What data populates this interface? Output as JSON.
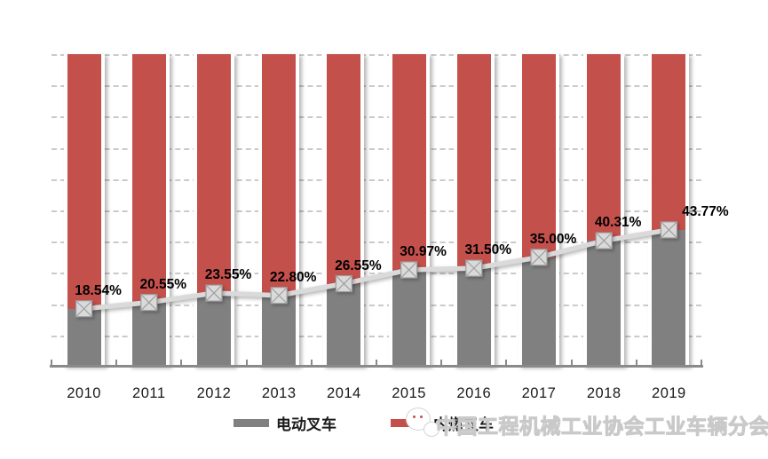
{
  "chart_data": {
    "type": "bar",
    "subtype": "100-percent-stacked-columns-with-line-overlay",
    "title": "",
    "categories": [
      "2010",
      "2011",
      "2012",
      "2013",
      "2014",
      "2015",
      "2016",
      "2017",
      "2018",
      "2019"
    ],
    "series": [
      {
        "name": "电动叉车",
        "role": "bar-bottom",
        "color": "#808080",
        "values": [
          18.54,
          20.55,
          23.55,
          22.8,
          26.55,
          30.97,
          31.5,
          35.0,
          40.31,
          43.77
        ]
      },
      {
        "name": "内燃叉车",
        "role": "bar-top-remainder",
        "color": "#c4504c",
        "values": [
          81.46,
          79.45,
          76.45,
          77.2,
          73.45,
          69.03,
          68.5,
          65.0,
          59.69,
          56.23
        ]
      }
    ],
    "line_overlay": {
      "role": "line",
      "color": "#dadada",
      "marker": "square-with-x",
      "values": [
        18.54,
        20.55,
        23.55,
        22.8,
        26.55,
        30.97,
        31.5,
        35.0,
        40.31,
        43.77
      ],
      "labels": [
        "18.54%",
        "20.55%",
        "23.55%",
        "22.80%",
        "26.55%",
        "30.97%",
        "31.50%",
        "35.00%",
        "40.31%",
        "43.77%"
      ]
    },
    "ylim": [
      0,
      100
    ],
    "grid": "horizontal dashed every 10%",
    "y_tick_labels_visible": false,
    "legend_position": "bottom"
  },
  "legend": {
    "items": [
      {
        "label": "电动叉车",
        "color": "#808080"
      },
      {
        "label": "内燃叉车",
        "color": "#c4504c"
      }
    ]
  },
  "watermark": {
    "logo": "wechat-bubbles-icon",
    "text": "中国工程机械工业协会工业车辆分会"
  },
  "colors": {
    "bar_gray": "#808080",
    "bar_red": "#c4504c",
    "line_gray": "#dadada",
    "marker_border": "#9f9f9f",
    "gridline": "#cacaca",
    "axis": "#8a8a8a",
    "data_label": "#000000",
    "watermark_text": "#e6e6e6"
  }
}
